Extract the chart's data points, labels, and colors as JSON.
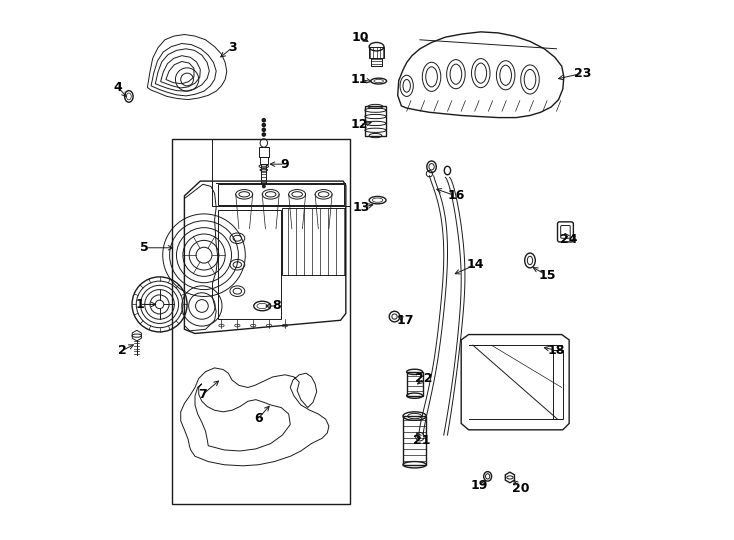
{
  "background_color": "#ffffff",
  "line_color": "#1a1a1a",
  "label_color": "#000000",
  "fig_width": 7.34,
  "fig_height": 5.4,
  "dpi": 100,
  "label_info": {
    "1": {
      "lpos": [
        0.07,
        0.435
      ],
      "apos": [
        0.108,
        0.435
      ]
    },
    "2": {
      "lpos": [
        0.038,
        0.348
      ],
      "apos": [
        0.065,
        0.362
      ]
    },
    "3": {
      "lpos": [
        0.245,
        0.92
      ],
      "apos": [
        0.218,
        0.898
      ]
    },
    "4": {
      "lpos": [
        0.03,
        0.845
      ],
      "apos": [
        0.05,
        0.822
      ]
    },
    "5": {
      "lpos": [
        0.08,
        0.542
      ],
      "apos": [
        0.14,
        0.542
      ]
    },
    "6": {
      "lpos": [
        0.295,
        0.22
      ],
      "apos": [
        0.32,
        0.248
      ]
    },
    "7": {
      "lpos": [
        0.19,
        0.265
      ],
      "apos": [
        0.225,
        0.295
      ]
    },
    "8": {
      "lpos": [
        0.33,
        0.432
      ],
      "apos": [
        0.302,
        0.432
      ]
    },
    "9": {
      "lpos": [
        0.345,
        0.7
      ],
      "apos": [
        0.31,
        0.7
      ]
    },
    "10": {
      "lpos": [
        0.488,
        0.94
      ],
      "apos": [
        0.508,
        0.928
      ]
    },
    "11": {
      "lpos": [
        0.486,
        0.86
      ],
      "apos": [
        0.515,
        0.855
      ]
    },
    "12": {
      "lpos": [
        0.486,
        0.775
      ],
      "apos": [
        0.515,
        0.78
      ]
    },
    "13": {
      "lpos": [
        0.49,
        0.618
      ],
      "apos": [
        0.518,
        0.625
      ]
    },
    "14": {
      "lpos": [
        0.705,
        0.51
      ],
      "apos": [
        0.66,
        0.49
      ]
    },
    "15": {
      "lpos": [
        0.84,
        0.49
      ],
      "apos": [
        0.808,
        0.508
      ]
    },
    "16": {
      "lpos": [
        0.668,
        0.64
      ],
      "apos": [
        0.625,
        0.655
      ]
    },
    "17": {
      "lpos": [
        0.572,
        0.405
      ],
      "apos": [
        0.553,
        0.415
      ]
    },
    "18": {
      "lpos": [
        0.858,
        0.348
      ],
      "apos": [
        0.828,
        0.355
      ]
    },
    "19": {
      "lpos": [
        0.712,
        0.092
      ],
      "apos": [
        0.728,
        0.108
      ]
    },
    "20": {
      "lpos": [
        0.79,
        0.088
      ],
      "apos": [
        0.772,
        0.108
      ]
    },
    "21": {
      "lpos": [
        0.604,
        0.178
      ],
      "apos": [
        0.59,
        0.198
      ]
    },
    "22": {
      "lpos": [
        0.608,
        0.295
      ],
      "apos": [
        0.59,
        0.28
      ]
    },
    "23": {
      "lpos": [
        0.908,
        0.872
      ],
      "apos": [
        0.855,
        0.86
      ]
    },
    "24": {
      "lpos": [
        0.882,
        0.558
      ],
      "apos": [
        0.87,
        0.575
      ]
    }
  }
}
